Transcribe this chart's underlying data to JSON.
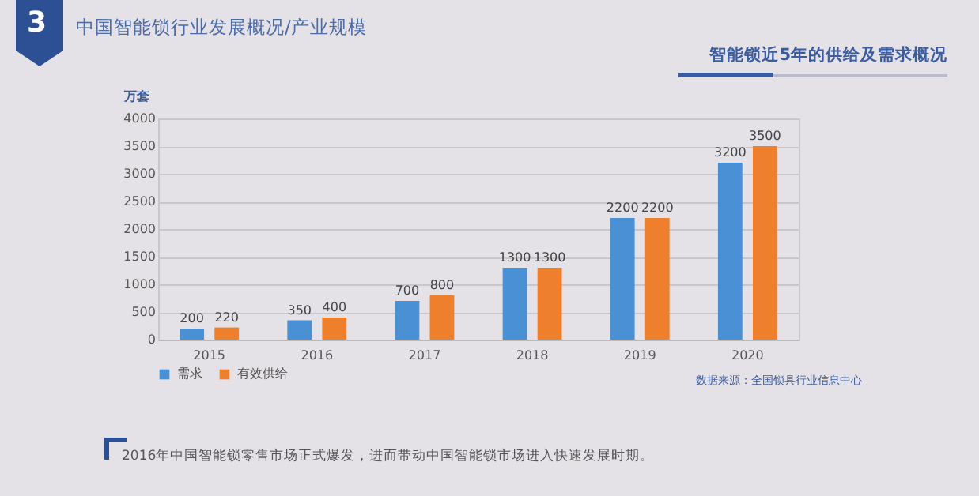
{
  "chart_data": {
    "type": "bar",
    "title": "中国智能锁行业发展概况/产业规模",
    "subtitle": "智能锁近5年的供给及需求概况",
    "ylabel": "万套",
    "categories": [
      "2015",
      "2016",
      "2017",
      "2018",
      "2019",
      "2020"
    ],
    "series": [
      {
        "name": "需求",
        "color": "#4a90d4",
        "values": [
          200,
          350,
          700,
          1300,
          2200,
          3200
        ]
      },
      {
        "name": "有效供给",
        "color": "#ee7f2d",
        "values": [
          220,
          400,
          800,
          1300,
          2200,
          3500
        ]
      }
    ],
    "ylim": [
      0,
      4000
    ],
    "yticks": [
      0,
      500,
      1000,
      1500,
      2000,
      2500,
      3000,
      3500,
      4000
    ],
    "grid": "y",
    "legend": "bottom",
    "data_labels": true,
    "annotations": [
      "3",
      "数据来源：全国锁具行业信息中心",
      "2016年中国智能锁零售市场正式爆发，进而带动中国智能锁市场进入快速发展时期。"
    ]
  }
}
